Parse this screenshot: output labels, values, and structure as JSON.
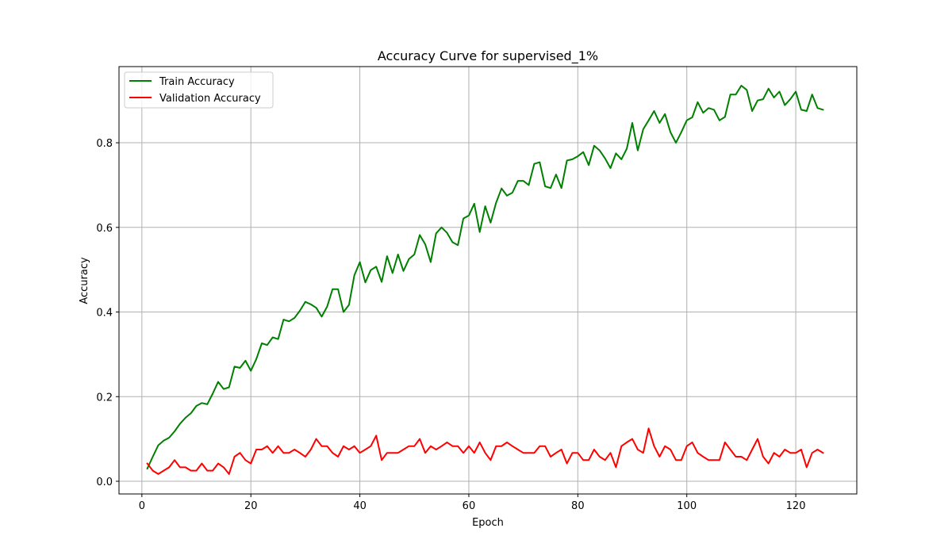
{
  "chart_data": {
    "type": "line",
    "title": "Accuracy Curve for supervised_1%",
    "xlabel": "Epoch",
    "ylabel": "Accuracy",
    "xlim": [
      -4.2,
      131.2
    ],
    "ylim": [
      -0.03,
      0.98
    ],
    "xticks": [
      0,
      20,
      40,
      60,
      80,
      100,
      120
    ],
    "yticks": [
      0.0,
      0.2,
      0.4,
      0.6,
      0.8
    ],
    "ytick_labels": [
      "0.0",
      "0.2",
      "0.4",
      "0.6",
      "0.8"
    ],
    "grid": true,
    "legend_position": "top-left",
    "series": [
      {
        "name": "Train Accuracy",
        "color": "#008000",
        "x": [
          1,
          2,
          3,
          4,
          5,
          6,
          7,
          8,
          9,
          10,
          11,
          12,
          13,
          14,
          15,
          16,
          17,
          18,
          19,
          20,
          21,
          22,
          23,
          24,
          25,
          26,
          27,
          28,
          29,
          30,
          31,
          32,
          33,
          34,
          35,
          36,
          37,
          38,
          39,
          40,
          41,
          42,
          43,
          44,
          45,
          46,
          47,
          48,
          49,
          50,
          51,
          52,
          53,
          54,
          55,
          56,
          57,
          58,
          59,
          60,
          61,
          62,
          63,
          64,
          65,
          66,
          67,
          68,
          69,
          70,
          71,
          72,
          73,
          74,
          75,
          76,
          77,
          78,
          79,
          80,
          81,
          82,
          83,
          84,
          85,
          86,
          87,
          88,
          89,
          90,
          91,
          92,
          93,
          94,
          95,
          96,
          97,
          98,
          99,
          100,
          101,
          102,
          103,
          104,
          105,
          106,
          107,
          108,
          109,
          110,
          111,
          112,
          113,
          114,
          115,
          116,
          117,
          118,
          119,
          120,
          121,
          122,
          123,
          124,
          125
        ],
        "values": [
          0.03,
          0.058,
          0.085,
          0.096,
          0.103,
          0.118,
          0.136,
          0.15,
          0.161,
          0.178,
          0.185,
          0.182,
          0.207,
          0.235,
          0.218,
          0.222,
          0.271,
          0.268,
          0.285,
          0.261,
          0.289,
          0.326,
          0.322,
          0.34,
          0.336,
          0.382,
          0.378,
          0.386,
          0.403,
          0.424,
          0.418,
          0.41,
          0.389,
          0.413,
          0.454,
          0.454,
          0.4,
          0.417,
          0.487,
          0.518,
          0.47,
          0.499,
          0.507,
          0.471,
          0.532,
          0.492,
          0.536,
          0.497,
          0.525,
          0.536,
          0.582,
          0.56,
          0.518,
          0.586,
          0.6,
          0.587,
          0.565,
          0.558,
          0.621,
          0.628,
          0.656,
          0.589,
          0.65,
          0.611,
          0.658,
          0.692,
          0.675,
          0.682,
          0.71,
          0.71,
          0.7,
          0.75,
          0.754,
          0.697,
          0.693,
          0.725,
          0.693,
          0.758,
          0.761,
          0.768,
          0.778,
          0.747,
          0.793,
          0.782,
          0.763,
          0.74,
          0.775,
          0.761,
          0.786,
          0.847,
          0.782,
          0.832,
          0.853,
          0.875,
          0.847,
          0.868,
          0.825,
          0.8,
          0.825,
          0.853,
          0.86,
          0.896,
          0.871,
          0.882,
          0.878,
          0.853,
          0.861,
          0.914,
          0.914,
          0.935,
          0.925,
          0.875,
          0.9,
          0.903,
          0.928,
          0.907,
          0.921,
          0.889,
          0.903,
          0.921,
          0.878,
          0.875,
          0.914,
          0.882,
          0.878
        ]
      },
      {
        "name": "Validation Accuracy",
        "color": "#ff0000",
        "x": [
          1,
          2,
          3,
          4,
          5,
          6,
          7,
          8,
          9,
          10,
          11,
          12,
          13,
          14,
          15,
          16,
          17,
          18,
          19,
          20,
          21,
          22,
          23,
          24,
          25,
          26,
          27,
          28,
          29,
          30,
          31,
          32,
          33,
          34,
          35,
          36,
          37,
          38,
          39,
          40,
          41,
          42,
          43,
          44,
          45,
          46,
          47,
          48,
          49,
          50,
          51,
          52,
          53,
          54,
          55,
          56,
          57,
          58,
          59,
          60,
          61,
          62,
          63,
          64,
          65,
          66,
          67,
          68,
          69,
          70,
          71,
          72,
          73,
          74,
          75,
          76,
          77,
          78,
          79,
          80,
          81,
          82,
          83,
          84,
          85,
          86,
          87,
          88,
          89,
          90,
          91,
          92,
          93,
          94,
          95,
          96,
          97,
          98,
          99,
          100,
          101,
          102,
          103,
          104,
          105,
          106,
          107,
          108,
          109,
          110,
          111,
          112,
          113,
          114,
          115,
          116,
          117,
          118,
          119,
          120,
          121,
          122,
          123,
          124,
          125
        ],
        "values": [
          0.042,
          0.025,
          0.017,
          0.025,
          0.033,
          0.05,
          0.033,
          0.033,
          0.025,
          0.025,
          0.042,
          0.025,
          0.025,
          0.042,
          0.033,
          0.017,
          0.058,
          0.067,
          0.05,
          0.042,
          0.075,
          0.075,
          0.083,
          0.067,
          0.083,
          0.067,
          0.067,
          0.075,
          0.067,
          0.058,
          0.075,
          0.1,
          0.083,
          0.083,
          0.067,
          0.058,
          0.083,
          0.075,
          0.083,
          0.067,
          0.075,
          0.083,
          0.108,
          0.05,
          0.067,
          0.067,
          0.067,
          0.075,
          0.083,
          0.083,
          0.1,
          0.067,
          0.083,
          0.075,
          0.083,
          0.092,
          0.083,
          0.083,
          0.067,
          0.083,
          0.067,
          0.092,
          0.067,
          0.05,
          0.083,
          0.083,
          0.092,
          0.083,
          0.075,
          0.067,
          0.067,
          0.067,
          0.083,
          0.083,
          0.058,
          0.067,
          0.075,
          0.042,
          0.067,
          0.067,
          0.05,
          0.05,
          0.075,
          0.058,
          0.05,
          0.067,
          0.033,
          0.083,
          0.092,
          0.1,
          0.075,
          0.067,
          0.125,
          0.083,
          0.058,
          0.083,
          0.075,
          0.05,
          0.05,
          0.083,
          0.092,
          0.067,
          0.058,
          0.05,
          0.05,
          0.05,
          0.092,
          0.075,
          0.058,
          0.058,
          0.05,
          0.075,
          0.1,
          0.058,
          0.042,
          0.067,
          0.058,
          0.075,
          0.067,
          0.067,
          0.075,
          0.033,
          0.067,
          0.075,
          0.067
        ]
      }
    ]
  }
}
